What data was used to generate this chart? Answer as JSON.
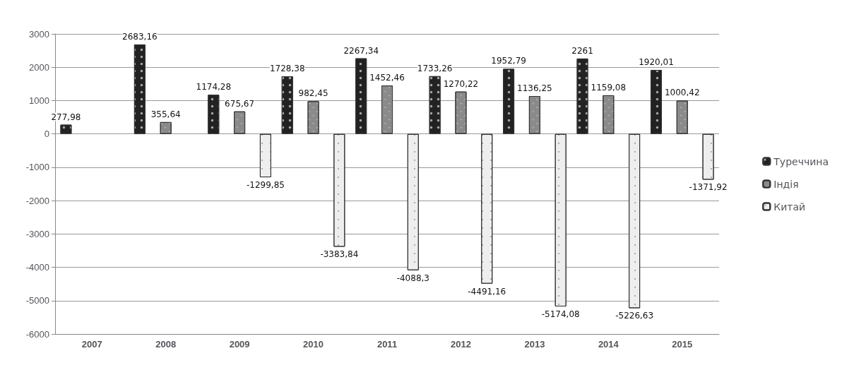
{
  "chart_data": {
    "type": "bar",
    "categories": [
      "2007",
      "2008",
      "2009",
      "2010",
      "2011",
      "2012",
      "2013",
      "2014",
      "2015"
    ],
    "series": [
      {
        "name": "Туреччина",
        "color": "#222222",
        "values": [
          277.98,
          2683.16,
          1174.28,
          1728.38,
          2267.34,
          1733.26,
          1952.79,
          2261,
          1920.01
        ],
        "value_labels": [
          "277,98",
          "2683,16",
          "1174,28",
          "1728,38",
          "2267,34",
          "1733,26",
          "1952,79",
          "2261",
          "1920,01"
        ]
      },
      {
        "name": "Індія",
        "color": "#8a8a8a",
        "values": [
          null,
          355.64,
          675.67,
          982.45,
          1452.46,
          1270.22,
          1136.25,
          1159.08,
          1000.42
        ],
        "value_labels": [
          null,
          "355,64",
          "675,67",
          "982,45",
          "1452,46",
          "1270,22",
          "1136,25",
          "1159,08",
          "1000,42"
        ]
      },
      {
        "name": "Китай",
        "color": "#eeeeee",
        "values": [
          null,
          null,
          -1299.85,
          -3383.84,
          -4088.3,
          -4491.16,
          -5174.08,
          -5226.63,
          -1371.92
        ],
        "value_labels": [
          null,
          null,
          "-1299,85",
          "-3383,84",
          "-4088,3",
          "-4491,16",
          "-5174,08",
          "-5226,63",
          "-1371,92"
        ]
      }
    ],
    "ylim": [
      -6000,
      3000
    ],
    "yticks": [
      -6000,
      -5000,
      -4000,
      -3000,
      -2000,
      -1000,
      0,
      1000,
      2000,
      3000
    ],
    "grid": "y",
    "legend": "right"
  }
}
